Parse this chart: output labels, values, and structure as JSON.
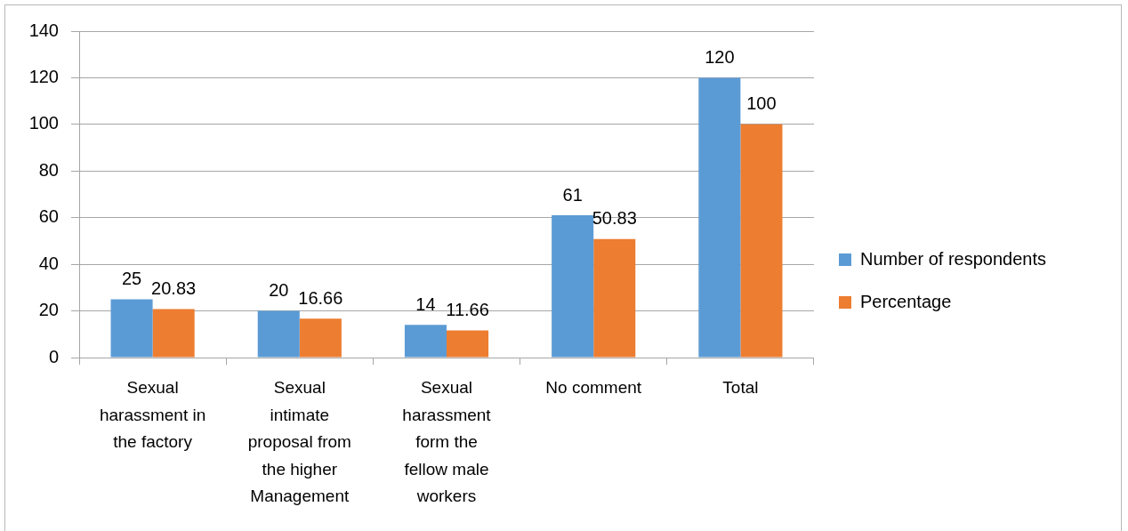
{
  "chart_data": {
    "type": "bar",
    "categories": [
      "Sexual harassment in the factory",
      "Sexual intimate proposal from the higher Management",
      "Sexual harassment form the fellow male workers",
      "No comment",
      "Total"
    ],
    "series": [
      {
        "name": "Number of respondents",
        "color": "#5b9bd5",
        "values": [
          25,
          20,
          14,
          61,
          120
        ]
      },
      {
        "name": "Percentage",
        "color": "#ed7d31",
        "values": [
          20.83,
          16.66,
          11.66,
          50.83,
          100
        ]
      }
    ],
    "ylim": [
      0,
      140
    ],
    "yticks": [
      0,
      20,
      40,
      60,
      80,
      100,
      120,
      140
    ],
    "grid": "y",
    "legend": "right",
    "data_labels": true
  }
}
